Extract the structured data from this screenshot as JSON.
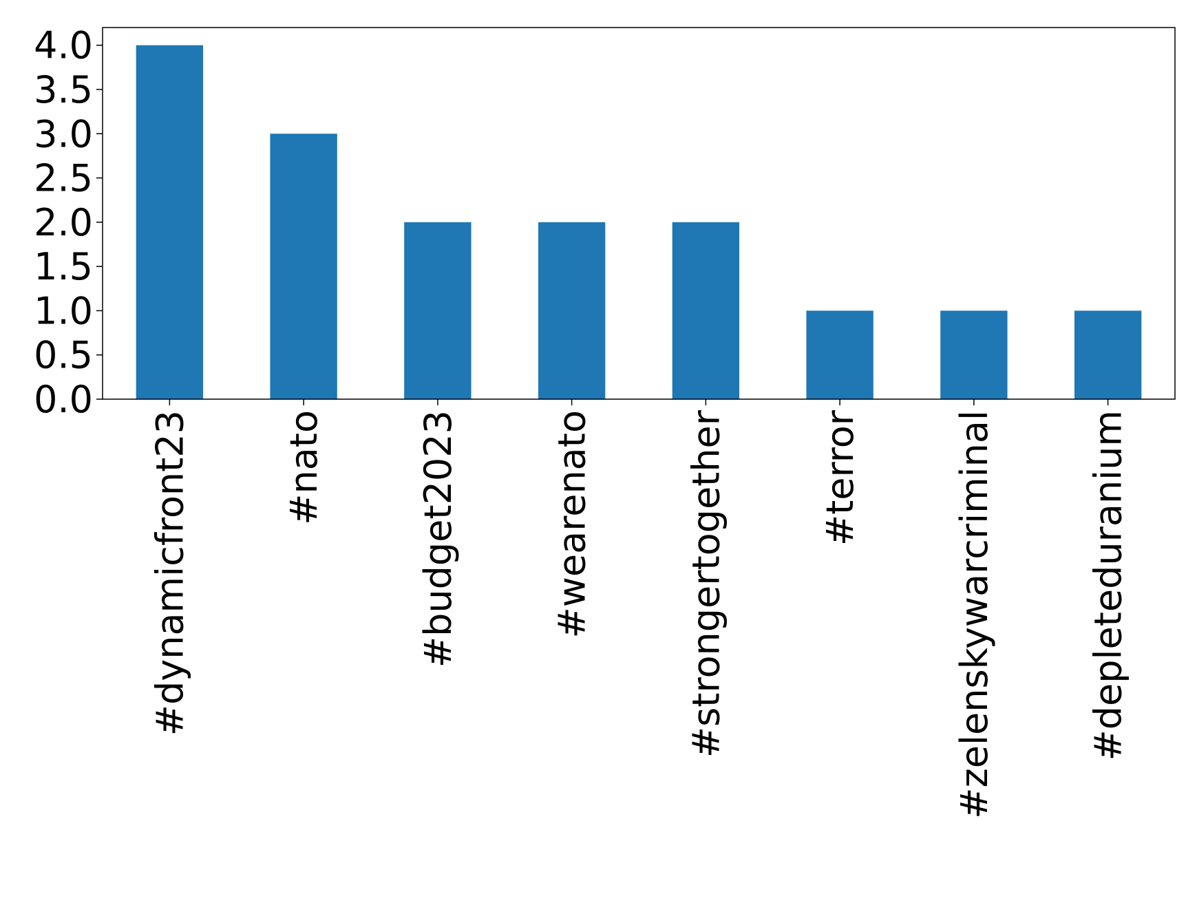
{
  "chart_data": {
    "type": "bar",
    "categories": [
      "#dynamicfront23",
      "#nato",
      "#budget2023",
      "#wearenato",
      "#strongertogether",
      "#terror",
      "#zelenskywarcriminal",
      "#depleteduranium"
    ],
    "values": [
      4,
      3,
      2,
      2,
      2,
      1,
      1,
      1
    ],
    "color": "#1f77b4",
    "ylim": [
      0,
      4.2
    ],
    "yticks": [
      {
        "value": 0,
        "label": "0.0"
      },
      0.5,
      {
        "value": 1,
        "label": "1.0"
      },
      1.5,
      {
        "value": 2,
        "label": "2.0"
      },
      2.5,
      {
        "value": 3,
        "label": "3.0"
      },
      3.5,
      {
        "value": 4,
        "label": "4.0"
      }
    ],
    "grid": false
  }
}
